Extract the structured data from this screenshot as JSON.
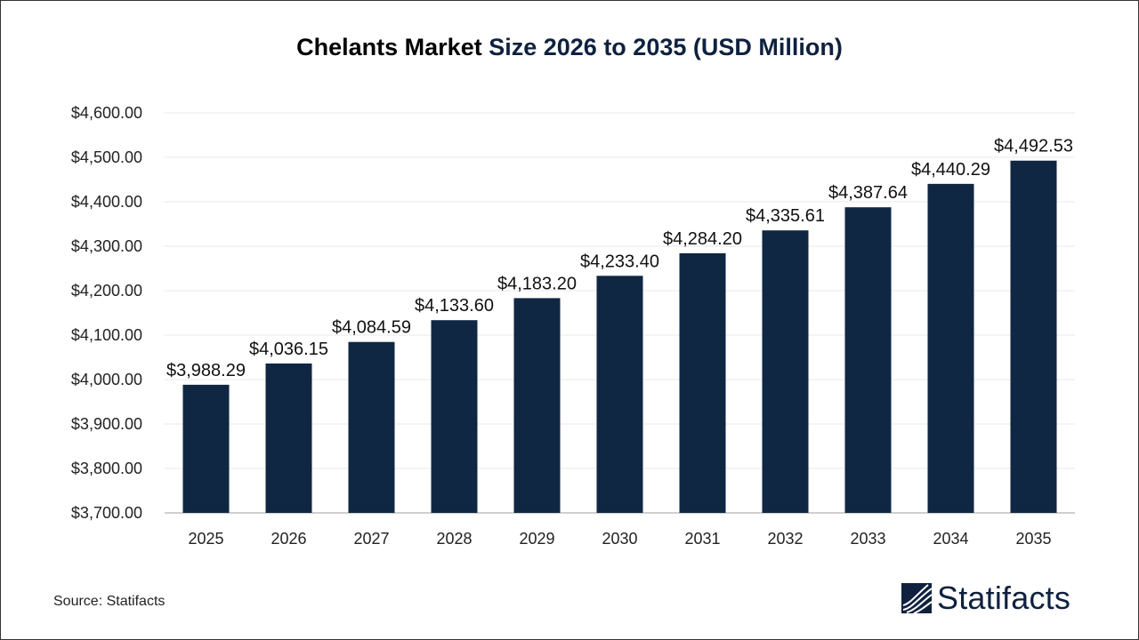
{
  "title_part1": "Chelants Market ",
  "title_part2": "Size 2026 to 2035 (USD Million)",
  "source": "Source: Statifacts",
  "logo_text": "Statifacts",
  "colors": {
    "bar": "#0f2742",
    "title_accent": "#0f213f",
    "grid": "#e8e8e8",
    "axis": "#bfbfbf"
  },
  "chart_data": {
    "type": "bar",
    "title": "Chelants Market Size 2026 to 2035 (USD Million)",
    "categories": [
      "2025",
      "2026",
      "2027",
      "2028",
      "2029",
      "2030",
      "2031",
      "2032",
      "2033",
      "2034",
      "2035"
    ],
    "values": [
      3988.29,
      4036.15,
      4084.59,
      4133.6,
      4183.2,
      4233.4,
      4284.2,
      4335.61,
      4387.64,
      4440.29,
      4492.53
    ],
    "value_labels": [
      "$3,988.29",
      "$4,036.15",
      "$4,084.59",
      "$4,133.60",
      "$4,183.20",
      "$4,233.40",
      "$4,284.20",
      "$4,335.61",
      "$4,387.64",
      "$4,440.29",
      "$4,492.53"
    ],
    "ylim": [
      3700,
      4600
    ],
    "yticks": [
      3700,
      3800,
      3900,
      4000,
      4100,
      4200,
      4300,
      4400,
      4500,
      4600
    ],
    "ytick_labels": [
      "$3,700.00",
      "$3,800.00",
      "$3,900.00",
      "$4,000.00",
      "$4,100.00",
      "$4,200.00",
      "$4,300.00",
      "$4,400.00",
      "$4,500.00",
      "$4,600.00"
    ],
    "grid": true,
    "legend": "none"
  }
}
